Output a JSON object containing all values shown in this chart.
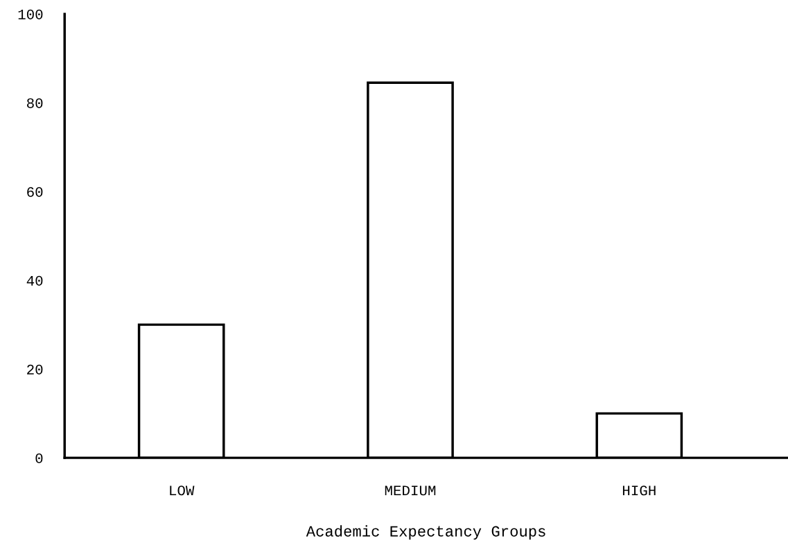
{
  "chart_data": {
    "type": "bar",
    "xlabel": "Academic Expectancy Groups",
    "categories": [
      "LOW",
      "MEDIUM",
      "HIGH"
    ],
    "values": [
      30,
      84.5,
      10
    ],
    "color": "#ffffff",
    "ylim": [
      0,
      100
    ],
    "yticks": [
      0,
      20,
      40,
      60,
      80,
      100
    ],
    "grid": false
  }
}
